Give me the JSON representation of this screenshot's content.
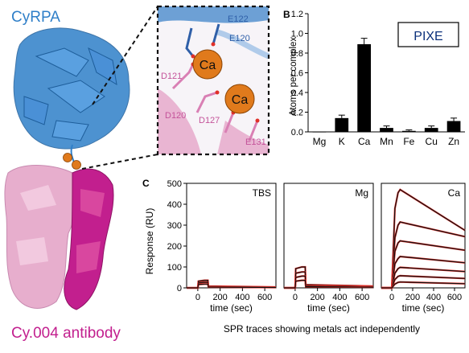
{
  "left_panel": {
    "protein_label": "CyRPA",
    "antibody_label": "Cy.004 antibody",
    "colors": {
      "cyrpa": "#2f7fc8",
      "antibody_dark": "#c21f8e",
      "antibody_light": "#e7aecd",
      "calcium": "#e07a1c"
    }
  },
  "inset": {
    "ion_labels": [
      "Ca",
      "Ca"
    ],
    "residues": [
      "E122",
      "E120",
      "D121",
      "D120",
      "D127",
      "E131"
    ]
  },
  "panel_b": {
    "panel_label": "B",
    "method_box": "PIXE",
    "chart_data": {
      "type": "bar",
      "categories": [
        "Mg",
        "K",
        "Ca",
        "Mn",
        "Fe",
        "Cu",
        "Zn"
      ],
      "values": [
        0.0,
        0.14,
        0.89,
        0.04,
        0.01,
        0.04,
        0.11
      ],
      "errors": [
        0.0,
        0.03,
        0.06,
        0.02,
        0.01,
        0.02,
        0.03
      ],
      "ylabel": "Atoms per complex",
      "ylim": [
        0,
        1.2
      ],
      "yticks": [
        "0.0",
        "0.2",
        "0.4",
        "0.6",
        "0.8",
        "1.0",
        "1.2"
      ],
      "bar_color": "#000000"
    }
  },
  "panel_c": {
    "panel_label": "C",
    "caption": "SPR traces showing metals act independently",
    "chart_data": [
      {
        "type": "line",
        "title": "TBS",
        "xlabel": "time (sec)",
        "ylabel": "Response (RU)",
        "xlim": [
          -100,
          700
        ],
        "ylim": [
          0,
          500
        ],
        "xticks": [
          "0",
          "200",
          "400",
          "600"
        ],
        "yticks": [
          "0",
          "100",
          "200",
          "300",
          "400",
          "500"
        ],
        "series": [
          {
            "values": [
              [
                -100,
                0
              ],
              [
                0,
                0
              ],
              [
                5,
                32
              ],
              [
                60,
                36
              ],
              [
                90,
                36
              ],
              [
                95,
                8
              ],
              [
                700,
                4
              ]
            ]
          },
          {
            "values": [
              [
                -100,
                0
              ],
              [
                0,
                0
              ],
              [
                5,
                24
              ],
              [
                60,
                27
              ],
              [
                90,
                27
              ],
              [
                95,
                6
              ],
              [
                700,
                3
              ]
            ]
          },
          {
            "values": [
              [
                -100,
                0
              ],
              [
                0,
                0
              ],
              [
                5,
                16
              ],
              [
                60,
                18
              ],
              [
                90,
                18
              ],
              [
                95,
                4
              ],
              [
                700,
                2
              ]
            ]
          }
        ]
      },
      {
        "type": "line",
        "title": "Mg",
        "xlabel": "time (sec)",
        "xlim": [
          -100,
          700
        ],
        "ylim": [
          0,
          500
        ],
        "xticks": [
          "0",
          "200",
          "400",
          "600"
        ],
        "series": [
          {
            "values": [
              [
                -100,
                0
              ],
              [
                0,
                0
              ],
              [
                5,
                92
              ],
              [
                60,
                100
              ],
              [
                90,
                100
              ],
              [
                95,
                15
              ],
              [
                700,
                8
              ]
            ]
          },
          {
            "values": [
              [
                -100,
                0
              ],
              [
                0,
                0
              ],
              [
                5,
                70
              ],
              [
                60,
                76
              ],
              [
                90,
                76
              ],
              [
                95,
                11
              ],
              [
                700,
                6
              ]
            ]
          },
          {
            "values": [
              [
                -100,
                0
              ],
              [
                0,
                0
              ],
              [
                5,
                50
              ],
              [
                60,
                56
              ],
              [
                90,
                56
              ],
              [
                95,
                8
              ],
              [
                700,
                5
              ]
            ]
          },
          {
            "values": [
              [
                -100,
                0
              ],
              [
                0,
                0
              ],
              [
                5,
                32
              ],
              [
                60,
                36
              ],
              [
                90,
                36
              ],
              [
                95,
                6
              ],
              [
                700,
                3
              ]
            ]
          }
        ]
      },
      {
        "type": "line",
        "title": "Ca",
        "xlabel": "time (sec)",
        "xlim": [
          -100,
          700
        ],
        "ylim": [
          0,
          500
        ],
        "xticks": [
          "0",
          "200",
          "400",
          "600"
        ],
        "series": [
          {
            "values": [
              [
                -100,
                0
              ],
              [
                0,
                0
              ],
              [
                30,
                380
              ],
              [
                60,
                455
              ],
              [
                80,
                470
              ],
              [
                700,
                275
              ]
            ]
          },
          {
            "values": [
              [
                -100,
                0
              ],
              [
                0,
                0
              ],
              [
                30,
                240
              ],
              [
                60,
                300
              ],
              [
                80,
                315
              ],
              [
                700,
                245
              ]
            ]
          },
          {
            "values": [
              [
                -100,
                0
              ],
              [
                0,
                0
              ],
              [
                30,
                175
              ],
              [
                60,
                215
              ],
              [
                80,
                225
              ],
              [
                700,
                180
              ]
            ]
          },
          {
            "values": [
              [
                -100,
                0
              ],
              [
                0,
                0
              ],
              [
                30,
                115
              ],
              [
                60,
                140
              ],
              [
                80,
                150
              ],
              [
                700,
                120
              ]
            ]
          },
          {
            "values": [
              [
                -100,
                0
              ],
              [
                0,
                0
              ],
              [
                30,
                70
              ],
              [
                60,
                92
              ],
              [
                80,
                98
              ],
              [
                700,
                78
              ]
            ]
          },
          {
            "values": [
              [
                -100,
                0
              ],
              [
                0,
                0
              ],
              [
                30,
                40
              ],
              [
                60,
                55
              ],
              [
                80,
                58
              ],
              [
                700,
                45
              ]
            ]
          },
          {
            "values": [
              [
                -100,
                0
              ],
              [
                0,
                0
              ],
              [
                30,
                18
              ],
              [
                60,
                26
              ],
              [
                80,
                28
              ],
              [
                700,
                20
              ]
            ]
          }
        ]
      }
    ]
  }
}
